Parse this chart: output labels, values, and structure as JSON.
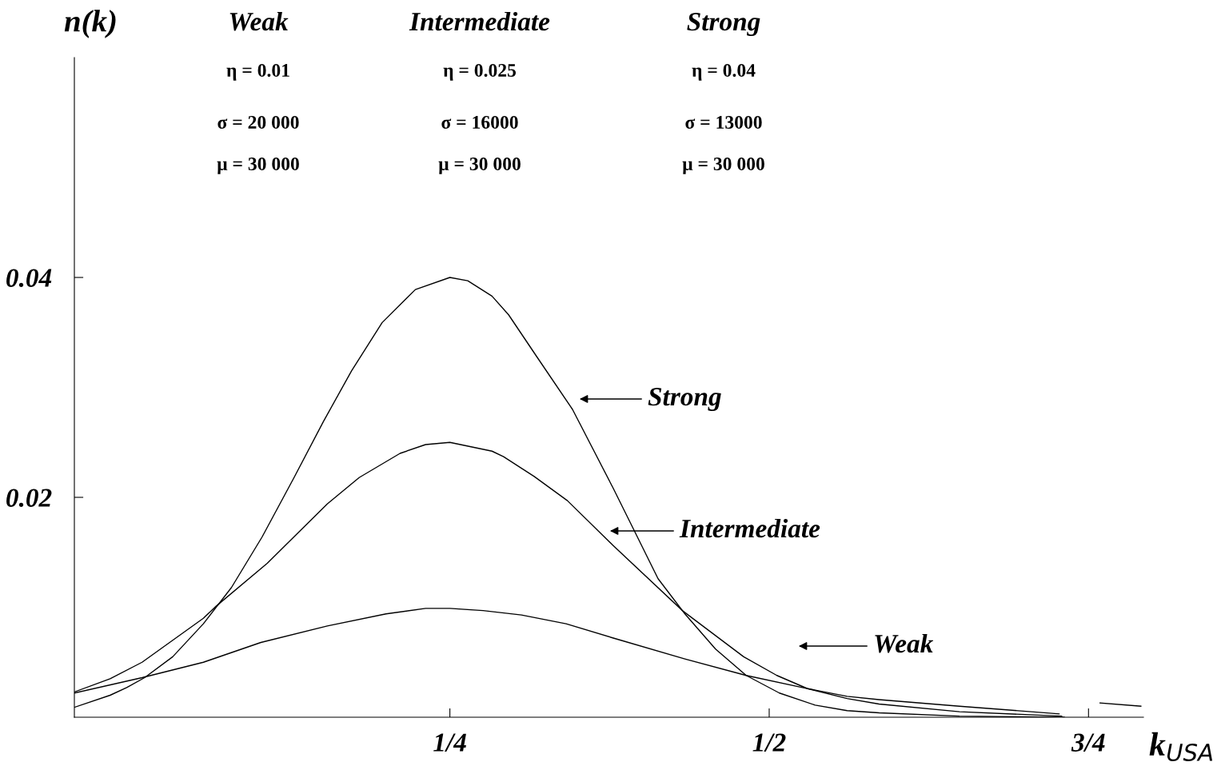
{
  "chart_data": {
    "type": "line",
    "ylabel": "n(k)",
    "xlabel": "k$_{USA}$",
    "xlim": [
      -0.044,
      0.793
    ],
    "ylim": [
      0,
      0.06
    ],
    "xticks": [
      {
        "value": 0.25,
        "label": "1/4"
      },
      {
        "value": 0.5,
        "label": "1/2"
      },
      {
        "value": 0.75,
        "label": "3/4"
      }
    ],
    "yticks": [
      0.02,
      0.04
    ],
    "grid": false,
    "legend": false,
    "marker": "none",
    "line_style": "solid",
    "series": [
      {
        "color": "#000000",
        "x": [
          -0.044,
          -0.016,
          -0.003,
          0.011,
          0.033,
          0.057,
          0.079,
          0.103,
          0.128,
          0.151,
          0.173,
          0.197,
          0.223,
          0.25,
          0.264,
          0.283,
          0.296,
          0.318,
          0.346,
          0.378,
          0.413,
          0.434,
          0.458,
          0.482,
          0.508,
          0.536,
          0.561,
          0.586,
          0.649,
          0.731
        ],
        "values": [
          0.0009,
          0.002,
          0.0027,
          0.0036,
          0.0055,
          0.0085,
          0.0118,
          0.0164,
          0.0218,
          0.0269,
          0.0315,
          0.0359,
          0.0389,
          0.04,
          0.0397,
          0.0383,
          0.0366,
          0.0328,
          0.028,
          0.0208,
          0.0126,
          0.0094,
          0.0062,
          0.0038,
          0.0022,
          0.0011,
          0.0006,
          0.0004,
          0.0001,
          0.0
        ]
      },
      {
        "color": "#000000",
        "x": [
          -0.044,
          -0.016,
          0.009,
          0.057,
          0.067,
          0.107,
          0.154,
          0.179,
          0.211,
          0.231,
          0.25,
          0.283,
          0.292,
          0.316,
          0.342,
          0.378,
          0.432,
          0.48,
          0.506,
          0.53,
          0.561,
          0.586,
          0.649,
          0.729
        ],
        "values": [
          0.0023,
          0.0035,
          0.005,
          0.009,
          0.0101,
          0.014,
          0.0194,
          0.0218,
          0.024,
          0.0248,
          0.025,
          0.0242,
          0.0237,
          0.0219,
          0.0197,
          0.0156,
          0.0097,
          0.0055,
          0.0038,
          0.0026,
          0.0017,
          0.0012,
          0.0005,
          0.0001
        ]
      },
      {
        "color": "#000000",
        "x": [
          -0.044,
          0.009,
          0.057,
          0.102,
          0.154,
          0.2,
          0.231,
          0.25,
          0.276,
          0.306,
          0.341,
          0.378,
          0.434,
          0.482,
          0.526,
          0.561,
          0.586,
          0.649,
          0.727
        ],
        "values": [
          0.0022,
          0.0036,
          0.005,
          0.0068,
          0.0083,
          0.0094,
          0.0099,
          0.0099,
          0.0097,
          0.0093,
          0.0085,
          0.0072,
          0.0053,
          0.0038,
          0.0027,
          0.0019,
          0.0016,
          0.001,
          0.0003
        ]
      },
      {
        "color": "#000000",
        "x": [
          0.759,
          0.791
        ],
        "values": [
          0.0013,
          0.001
        ]
      }
    ],
    "annotations": [
      "Weak",
      "η = 0.01",
      "σ = 20 000",
      "μ = 30 000",
      "Intermediate",
      "η = 0.025",
      "σ = 16000",
      "μ = 30 000",
      "Strong",
      "η = 0.04",
      "σ = 13000",
      "μ = 30 000",
      "Strong",
      "Intermediate",
      "Weak"
    ]
  }
}
